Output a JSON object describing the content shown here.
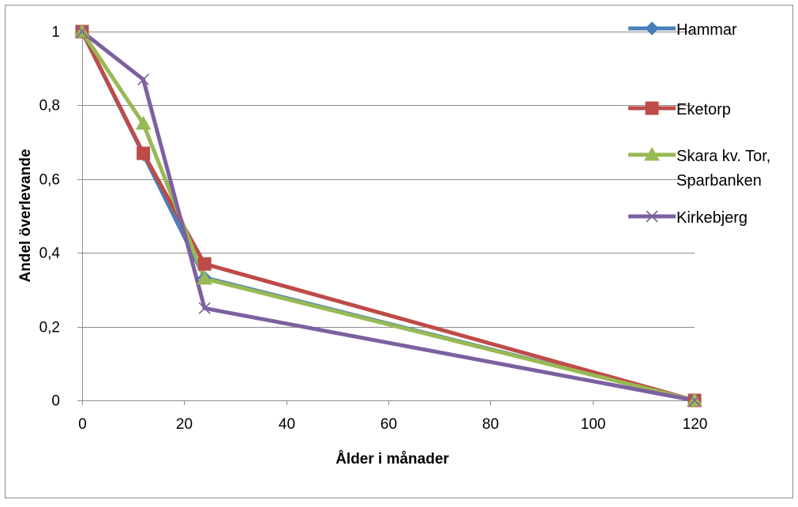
{
  "chart_data": {
    "type": "line",
    "title": "",
    "xlabel": "Ålder i månader",
    "ylabel": "Andel överlevande",
    "xlim": [
      0,
      120
    ],
    "ylim": [
      0,
      1
    ],
    "x_ticks": [
      0,
      20,
      40,
      60,
      80,
      100,
      120
    ],
    "y_ticks": [
      0,
      0.2,
      0.4,
      0.6,
      0.8,
      1
    ],
    "x_tick_labels": [
      "0",
      "20",
      "40",
      "60",
      "80",
      "100",
      "120"
    ],
    "y_tick_labels": [
      "0",
      "0,2",
      "0,4",
      "0,6",
      "0,8",
      "1"
    ],
    "grid": "horizontal",
    "legend_position": "right",
    "series": [
      {
        "name": "Hammar",
        "color": "#4a7ebb",
        "marker": "diamond",
        "points": [
          [
            0,
            1
          ],
          [
            12,
            0.667
          ],
          [
            24,
            0.333
          ],
          [
            120,
            0
          ]
        ]
      },
      {
        "name": "Eketorp",
        "color": "#be4b48",
        "marker": "square",
        "points": [
          [
            0,
            1
          ],
          [
            12,
            0.67
          ],
          [
            24,
            0.37
          ],
          [
            120,
            0
          ]
        ]
      },
      {
        "name": "Skara kv. Tor, Sparbanken",
        "legend_lines": [
          "Skara kv. Tor,",
          "Sparbanken"
        ],
        "color": "#98b954",
        "marker": "triangle",
        "points": [
          [
            0,
            1
          ],
          [
            12,
            0.75
          ],
          [
            24,
            0.33
          ],
          [
            120,
            0
          ]
        ]
      },
      {
        "name": "Kirkebjerg",
        "color": "#7d60a0",
        "marker": "x",
        "points": [
          [
            0,
            1
          ],
          [
            12,
            0.87
          ],
          [
            24,
            0.25
          ],
          [
            120,
            0
          ]
        ]
      }
    ]
  }
}
